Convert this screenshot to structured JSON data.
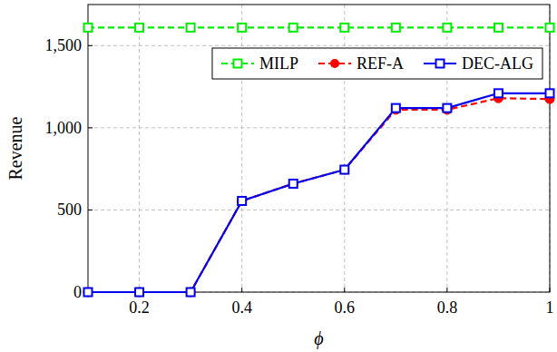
{
  "chart_data": {
    "type": "line",
    "x_label": "ϕ",
    "y_label": "Revenue",
    "x": [
      0.1,
      0.2,
      0.3,
      0.4,
      0.5,
      0.6,
      0.7,
      0.8,
      0.9,
      1.0
    ],
    "series": [
      {
        "name": "MILP",
        "color": "#00ee00",
        "marker": "square-open",
        "line_style": "dashed",
        "values": [
          1610,
          1610,
          1610,
          1610,
          1610,
          1610,
          1610,
          1610,
          1610,
          1610
        ]
      },
      {
        "name": "REF-A",
        "color": "#ff0000",
        "marker": "circle",
        "line_style": "dashed",
        "values": [
          0,
          0,
          0,
          555,
          660,
          745,
          1110,
          1110,
          1180,
          1175
        ]
      },
      {
        "name": "DEC-ALG",
        "color": "#0000ee",
        "marker": "square-open",
        "line_style": "solid",
        "values": [
          0,
          0,
          0,
          555,
          660,
          745,
          1120,
          1120,
          1210,
          1210
        ]
      }
    ],
    "xlim": [
      0.1,
      1.0
    ],
    "xticks": [
      0.2,
      0.4,
      0.6,
      0.8,
      1
    ],
    "ylim": [
      0,
      1750
    ],
    "yticks": [
      0,
      500,
      {
        "value": 1000,
        "label": "1,000"
      },
      {
        "value": 1500,
        "label": "1,500"
      }
    ],
    "grid": true,
    "legend": "upper right"
  }
}
